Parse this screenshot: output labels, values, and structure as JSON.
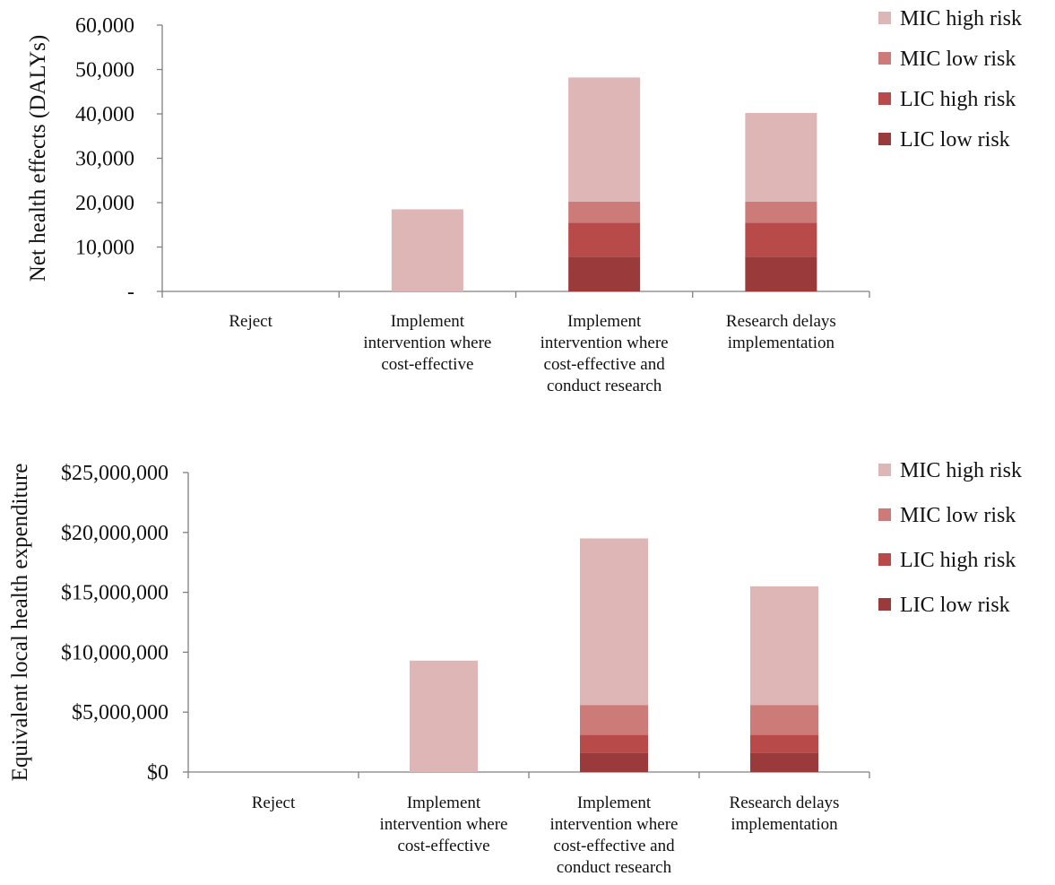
{
  "colors": {
    "LIC low risk": "#9b3a3a",
    "LIC high risk": "#b84a4a",
    "MIC low risk": "#cd7b79",
    "MIC high risk": "#deb6b5"
  },
  "chart_data": [
    {
      "type": "bar",
      "stacked": true,
      "title": "",
      "xlabel": "",
      "ylabel": "Net health effects (DALYs)",
      "ylim": [
        0,
        60000
      ],
      "yticks": [
        0,
        10000,
        20000,
        30000,
        40000,
        50000,
        60000
      ],
      "ytick_labels": [
        "-",
        "10,000",
        "20,000",
        "30,000",
        "40,000",
        "50,000",
        "60,000"
      ],
      "categories": [
        [
          "Reject"
        ],
        [
          "Implement",
          "intervention where",
          "cost-effective"
        ],
        [
          "Implement",
          "intervention where",
          "cost-effective and",
          "conduct research"
        ],
        [
          "Research delays",
          "implementation"
        ]
      ],
      "series": [
        {
          "name": "LIC low risk",
          "values": [
            0,
            0,
            7800,
            7800
          ]
        },
        {
          "name": "LIC high risk",
          "values": [
            0,
            0,
            7700,
            7700
          ]
        },
        {
          "name": "MIC low risk",
          "values": [
            0,
            0,
            4700,
            4700
          ]
        },
        {
          "name": "MIC high risk",
          "values": [
            0,
            18500,
            28000,
            20000
          ]
        }
      ],
      "legend": {
        "position": "right",
        "order": [
          "MIC high risk",
          "MIC low risk",
          "LIC high risk",
          "LIC low risk"
        ]
      }
    },
    {
      "type": "bar",
      "stacked": true,
      "title": "",
      "xlabel": "",
      "ylabel": "Equivalent local health expenditure",
      "ylim": [
        0,
        25000000
      ],
      "yticks": [
        0,
        5000000,
        10000000,
        15000000,
        20000000,
        25000000
      ],
      "ytick_labels": [
        "$0",
        "$5,000,000",
        "$10,000,000",
        "$15,000,000",
        "$20,000,000",
        "$25,000,000"
      ],
      "categories": [
        [
          "Reject"
        ],
        [
          "Implement",
          "intervention where",
          "cost-effective"
        ],
        [
          "Implement",
          "intervention where",
          "cost-effective and",
          "conduct research"
        ],
        [
          "Research delays",
          "implementation"
        ]
      ],
      "series": [
        {
          "name": "LIC low risk",
          "values": [
            0,
            0,
            1600000,
            1600000
          ]
        },
        {
          "name": "LIC high risk",
          "values": [
            0,
            0,
            1500000,
            1500000
          ]
        },
        {
          "name": "MIC low risk",
          "values": [
            0,
            0,
            2500000,
            2500000
          ]
        },
        {
          "name": "MIC high risk",
          "values": [
            0,
            9300000,
            13900000,
            9900000
          ]
        }
      ],
      "legend": {
        "position": "right",
        "order": [
          "MIC high risk",
          "MIC low risk",
          "LIC high risk",
          "LIC low risk"
        ]
      }
    }
  ]
}
